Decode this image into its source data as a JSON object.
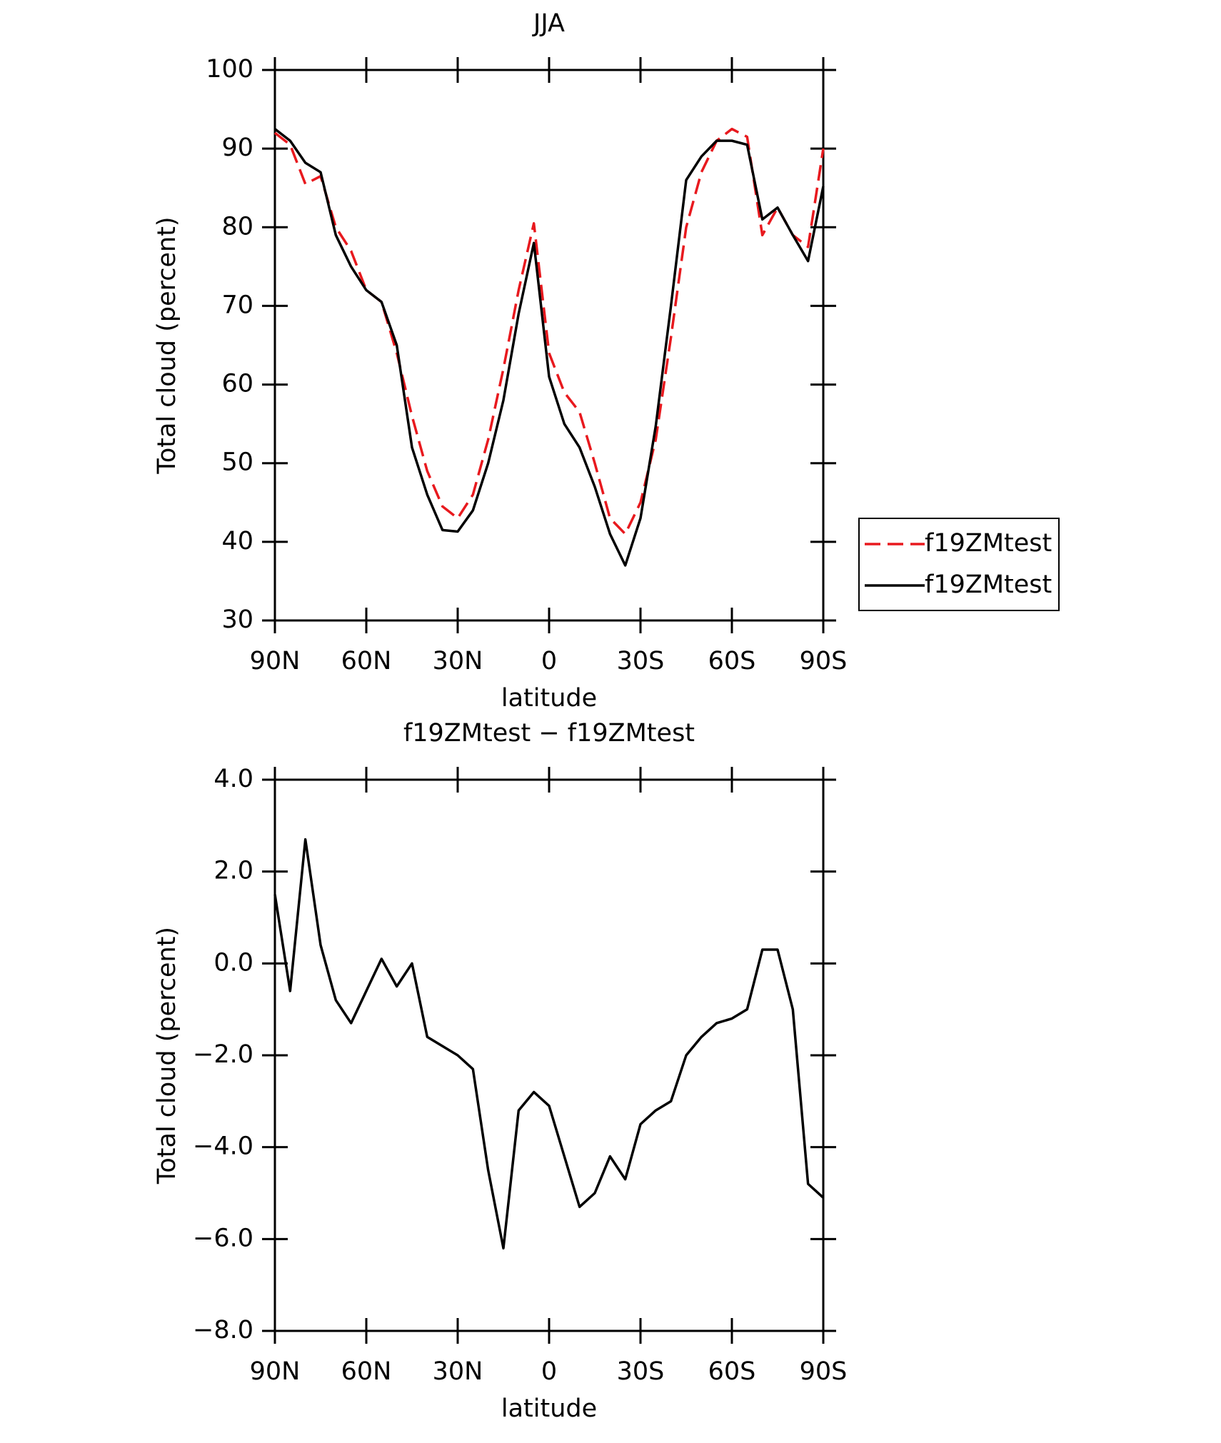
{
  "chart_data": [
    {
      "type": "line",
      "title": "JJA",
      "xlabel": "latitude",
      "ylabel": "Total cloud (percent)",
      "x": [
        90,
        85,
        80,
        75,
        70,
        65,
        60,
        55,
        50,
        45,
        40,
        35,
        30,
        25,
        20,
        15,
        10,
        5,
        0,
        -5,
        -10,
        -15,
        -20,
        -25,
        -30,
        -35,
        -40,
        -45,
        -50,
        -55,
        -60,
        -65,
        -70,
        -75,
        -80,
        -85,
        -90
      ],
      "series": [
        {
          "name": "f19ZMtest",
          "color": "#e8191e",
          "dash": true,
          "values": [
            92,
            90.5,
            85.5,
            86.5,
            80,
            77,
            72,
            70.5,
            64,
            56,
            49,
            44.5,
            43,
            46,
            53,
            62,
            72,
            80.5,
            64,
            59,
            56.5,
            50,
            43,
            41,
            45,
            53,
            66,
            80,
            87,
            91,
            92.5,
            91.5,
            79,
            82.5,
            79,
            77.5,
            90
          ]
        },
        {
          "name": "f19ZMtest",
          "color": "#000000",
          "dash": false,
          "values": [
            92.5,
            91,
            88.2,
            87,
            79,
            75,
            72,
            70.5,
            65,
            52,
            46,
            41.5,
            41.3,
            44,
            50,
            58,
            69,
            78,
            61,
            55,
            52,
            47,
            41,
            37,
            43,
            54.7,
            70,
            86,
            89,
            91,
            91,
            90.5,
            81,
            82.5,
            79,
            75.7,
            85.2
          ]
        }
      ],
      "xlim": [
        90,
        -90
      ],
      "xticks": [
        {
          "value": 90,
          "label": "90N"
        },
        {
          "value": 60,
          "label": "60N"
        },
        {
          "value": 30,
          "label": "30N"
        },
        0,
        {
          "value": -30,
          "label": "30S"
        },
        {
          "value": -60,
          "label": "60S"
        },
        {
          "value": -90,
          "label": "90S"
        }
      ],
      "ylim": [
        30,
        100
      ],
      "yticks": [
        30,
        40,
        50,
        60,
        70,
        80,
        90,
        100
      ],
      "legend": "right"
    },
    {
      "type": "line",
      "title": "f19ZMtest − f19ZMtest",
      "xlabel": "latitude",
      "ylabel": "Total cloud (percent)",
      "x": [
        90,
        85,
        80,
        75,
        70,
        65,
        60,
        55,
        50,
        45,
        40,
        35,
        30,
        25,
        20,
        15,
        10,
        5,
        0,
        -5,
        -10,
        -15,
        -20,
        -25,
        -30,
        -35,
        -40,
        -45,
        -50,
        -55,
        -60,
        -65,
        -70,
        -75,
        -80,
        -85,
        -90
      ],
      "series": [
        {
          "color": "#000000",
          "values": [
            1.5,
            -0.6,
            2.7,
            0.4,
            -0.8,
            -1.3,
            -0.6,
            0.1,
            -0.5,
            0,
            -1.6,
            -1.8,
            -2.0,
            -2.3,
            -4.5,
            -6.2,
            -3.2,
            -2.8,
            -3.1,
            -4.2,
            -5.3,
            -5.0,
            -4.2,
            -4.7,
            -3.5,
            -3.2,
            -3.0,
            -2.0,
            -1.6,
            -1.3,
            -1.2,
            -1.0,
            0.3,
            0.3,
            -1.0,
            -4.8,
            -5.1
          ]
        }
      ],
      "xlim": [
        90,
        -90
      ],
      "xticks": [
        {
          "value": 90,
          "label": "90N"
        },
        {
          "value": 60,
          "label": "60N"
        },
        {
          "value": 30,
          "label": "30N"
        },
        0,
        {
          "value": -30,
          "label": "30S"
        },
        {
          "value": -60,
          "label": "60S"
        },
        {
          "value": -90,
          "label": "90S"
        }
      ],
      "ylim": [
        -8,
        4
      ],
      "yticks": [
        {
          "value": -8,
          "label": "−8.0"
        },
        {
          "value": -6,
          "label": "−6.0"
        },
        {
          "value": -4,
          "label": "−4.0"
        },
        {
          "value": -2,
          "label": "−2.0"
        },
        {
          "value": 0,
          "label": "0.0"
        },
        {
          "value": 2,
          "label": "2.0"
        },
        {
          "value": 4,
          "label": "4.0"
        }
      ]
    }
  ]
}
